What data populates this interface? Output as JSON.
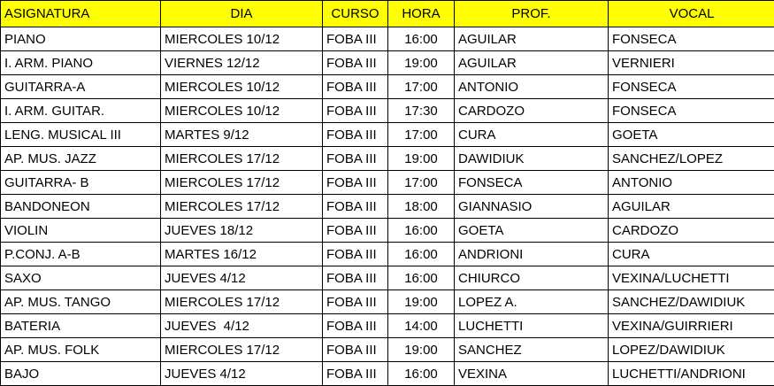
{
  "colors": {
    "header_bg": "#ffff00",
    "border": "#000000",
    "text": "#000000",
    "row_bg": "#ffffff"
  },
  "table": {
    "columns": [
      {
        "key": "asignatura",
        "label": "ASIGNATURA",
        "header_align": "left",
        "cell_align": "left"
      },
      {
        "key": "dia",
        "label": "DIA",
        "header_align": "center",
        "cell_align": "left"
      },
      {
        "key": "curso",
        "label": "CURSO",
        "header_align": "center",
        "cell_align": "left"
      },
      {
        "key": "hora",
        "label": "HORA",
        "header_align": "center",
        "cell_align": "center"
      },
      {
        "key": "prof",
        "label": "PROF.",
        "header_align": "center",
        "cell_align": "left"
      },
      {
        "key": "vocal",
        "label": "VOCAL",
        "header_align": "center",
        "cell_align": "left"
      }
    ],
    "rows": [
      [
        "PIANO",
        "MIERCOLES 10/12",
        "FOBA III",
        "16:00",
        "AGUILAR",
        "FONSECA"
      ],
      [
        "I. ARM. PIANO",
        "VIERNES 12/12",
        "FOBA III",
        "19:00",
        "AGUILAR",
        "VERNIERI"
      ],
      [
        "GUITARRA-A",
        "MIERCOLES 10/12",
        "FOBA III",
        "17:00",
        "ANTONIO",
        "FONSECA"
      ],
      [
        "I. ARM. GUITAR.",
        "MIERCOLES 10/12",
        "FOBA III",
        "17:30",
        "CARDOZO",
        "FONSECA"
      ],
      [
        "LENG. MUSICAL III",
        "MARTES 9/12",
        "FOBA III",
        "17:00",
        "CURA",
        "GOETA"
      ],
      [
        "AP. MUS. JAZZ",
        "MIERCOLES 17/12",
        "FOBA III",
        "19:00",
        "DAWIDIUK",
        "SANCHEZ/LOPEZ"
      ],
      [
        "GUITARRA- B",
        "MIERCOLES 17/12",
        "FOBA III",
        "17:00",
        "FONSECA",
        "ANTONIO"
      ],
      [
        "BANDONEON",
        "MIERCOLES 17/12",
        "FOBA III",
        "18:00",
        "GIANNASIO",
        "AGUILAR"
      ],
      [
        "VIOLIN",
        "JUEVES 18/12",
        "FOBA III",
        "16:00",
        "GOETA",
        "CARDOZO"
      ],
      [
        "P.CONJ. A-B",
        "MARTES 16/12",
        "FOBA III",
        "16:00",
        "ANDRIONI",
        "CURA"
      ],
      [
        "SAXO",
        "JUEVES 4/12",
        "FOBA III",
        "16:00",
        "CHIURCO",
        "VEXINA/LUCHETTI"
      ],
      [
        "AP. MUS. TANGO",
        "MIERCOLES 17/12",
        "FOBA III",
        "19:00",
        "LOPEZ A.",
        "SANCHEZ/DAWIDIUK"
      ],
      [
        "BATERIA",
        "JUEVES  4/12",
        "FOBA III",
        "14:00",
        "LUCHETTI",
        "VEXINA/GUIRRIERI"
      ],
      [
        "AP. MUS. FOLK",
        "MIERCOLES 17/12",
        "FOBA III",
        "19:00",
        "SANCHEZ",
        "LOPEZ/DAWIDIUK"
      ],
      [
        "BAJO",
        "JUEVES 4/12",
        "FOBA III",
        "16:00",
        "VEXINA",
        "LUCHETTI/ANDRIONI"
      ]
    ]
  }
}
